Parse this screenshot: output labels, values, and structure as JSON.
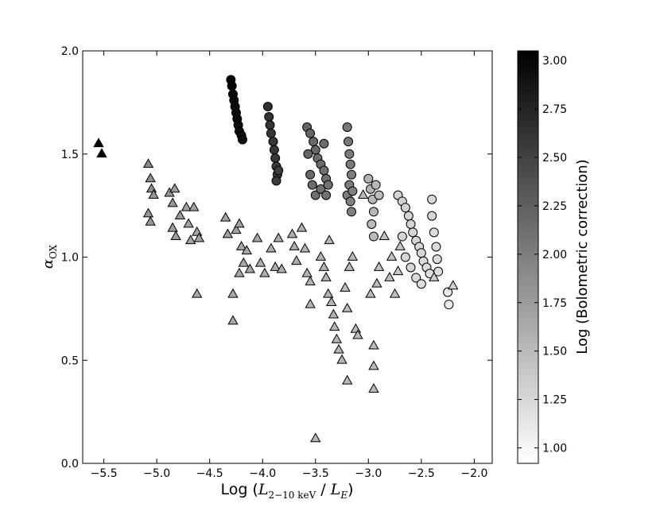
{
  "chart_data": {
    "type": "scatter",
    "xlabel": {
      "prefix": "Log (",
      "var": "L",
      "sub": "2−10 keV",
      "sep": " / ",
      "var2": "L",
      "sub2": "E",
      "suffix": ")"
    },
    "ylabel": {
      "var": "α",
      "sub": "OX"
    },
    "colorbar_label": "Log (Bolometric correction)",
    "xlim": [
      -5.7,
      -1.83
    ],
    "ylim": [
      0,
      2
    ],
    "clim": [
      0.92,
      3.05
    ],
    "colormap": "gray_r",
    "xticks": [
      {
        "value": -5.5,
        "label": "−5.5"
      },
      {
        "value": -5.0,
        "label": "−5.0"
      },
      {
        "value": -4.5,
        "label": "−4.5"
      },
      {
        "value": -4.0,
        "label": "−4.0"
      },
      {
        "value": -3.5,
        "label": "−3.5"
      },
      {
        "value": -3.0,
        "label": "−3.0"
      },
      {
        "value": -2.5,
        "label": "−2.5"
      },
      {
        "value": -2.0,
        "label": "−2.0"
      }
    ],
    "yticks": [
      {
        "value": 0.0,
        "label": "0.0"
      },
      0.5,
      {
        "value": 1.0,
        "label": "1.0"
      },
      1.5,
      {
        "value": 2.0,
        "label": "2.0"
      }
    ],
    "cticks": [
      {
        "value": 1.0,
        "label": "1.00"
      },
      1.25,
      {
        "value": 1.5,
        "label": "1.50"
      },
      1.75,
      {
        "value": 2.0,
        "label": "2.00"
      },
      2.25,
      {
        "value": 2.5,
        "label": "2.50"
      },
      2.75,
      {
        "value": 3.0,
        "label": "3.00"
      }
    ],
    "series": [
      {
        "marker": "circle",
        "x": [
          -4.3,
          -4.29,
          -4.28,
          -4.27,
          -4.26,
          -4.25,
          -4.24,
          -4.23,
          -4.22,
          -4.2,
          -4.19,
          -3.95,
          -3.94,
          -3.93,
          -3.92,
          -3.9,
          -3.89,
          -3.88,
          -3.87,
          -3.86,
          -3.87,
          -3.85,
          -3.58,
          -3.55,
          -3.52,
          -3.5,
          -3.48,
          -3.45,
          -3.42,
          -3.4,
          -3.57,
          -3.55,
          -3.53,
          -3.5,
          -3.45,
          -3.4,
          -3.38,
          -3.42,
          -3.2,
          -3.19,
          -3.18,
          -3.17,
          -3.16,
          -3.18,
          -3.2,
          -3.17,
          -3.16,
          -3.15,
          -3.0,
          -2.98,
          -2.96,
          -2.95,
          -2.97,
          -2.95,
          -2.93,
          -2.9,
          -2.72,
          -2.68,
          -2.65,
          -2.62,
          -2.6,
          -2.58,
          -2.55,
          -2.52,
          -2.5,
          -2.48,
          -2.45,
          -2.42,
          -2.4,
          -2.4,
          -2.38,
          -2.36,
          -2.35,
          -2.34,
          -2.6,
          -2.55,
          -2.5,
          -2.65,
          -2.68,
          -2.25,
          -2.24
        ],
        "y": [
          1.86,
          1.83,
          1.79,
          1.76,
          1.73,
          1.7,
          1.67,
          1.64,
          1.61,
          1.59,
          1.57,
          1.73,
          1.68,
          1.64,
          1.6,
          1.56,
          1.52,
          1.48,
          1.44,
          1.4,
          1.37,
          1.42,
          1.63,
          1.6,
          1.56,
          1.52,
          1.48,
          1.45,
          1.42,
          1.38,
          1.5,
          1.4,
          1.35,
          1.3,
          1.33,
          1.3,
          1.35,
          1.55,
          1.63,
          1.56,
          1.5,
          1.45,
          1.4,
          1.35,
          1.3,
          1.27,
          1.22,
          1.32,
          1.38,
          1.33,
          1.28,
          1.22,
          1.16,
          1.1,
          1.35,
          1.3,
          1.3,
          1.27,
          1.24,
          1.2,
          1.16,
          1.12,
          1.08,
          1.05,
          1.02,
          0.98,
          0.95,
          0.92,
          1.28,
          1.2,
          1.12,
          1.05,
          0.99,
          0.93,
          0.95,
          0.9,
          0.87,
          1.0,
          1.1,
          0.83,
          0.77
        ],
        "c": [
          3.0,
          3.0,
          2.98,
          2.97,
          2.96,
          2.95,
          2.95,
          2.94,
          2.93,
          2.93,
          2.92,
          2.65,
          2.62,
          2.62,
          2.6,
          2.6,
          2.58,
          2.58,
          2.56,
          2.56,
          2.55,
          2.55,
          2.2,
          2.2,
          2.18,
          2.18,
          2.15,
          2.15,
          2.12,
          2.12,
          2.2,
          2.18,
          2.15,
          2.12,
          2.12,
          2.1,
          2.1,
          2.15,
          2.05,
          2.05,
          2.02,
          2.02,
          2.0,
          2.0,
          2.0,
          1.98,
          1.98,
          1.98,
          1.55,
          1.55,
          1.52,
          1.52,
          1.5,
          1.5,
          1.52,
          1.5,
          1.3,
          1.3,
          1.3,
          1.28,
          1.28,
          1.28,
          1.25,
          1.25,
          1.25,
          1.22,
          1.22,
          1.2,
          1.25,
          1.25,
          1.22,
          1.22,
          1.2,
          1.2,
          1.25,
          1.22,
          1.2,
          1.28,
          1.28,
          1.1,
          1.1
        ]
      },
      {
        "marker": "triangle",
        "x": [
          -5.55,
          -5.52,
          -5.08,
          -5.06,
          -5.05,
          -5.03,
          -5.08,
          -5.06,
          -4.88,
          -4.85,
          -4.83,
          -4.85,
          -4.82,
          -4.78,
          -4.72,
          -4.7,
          -4.68,
          -4.65,
          -4.62,
          -4.6,
          -4.62,
          -4.35,
          -4.33,
          -4.28,
          -4.28,
          -4.25,
          -4.22,
          -4.2,
          -4.22,
          -4.18,
          -4.15,
          -4.12,
          -4.05,
          -4.02,
          -3.98,
          -3.92,
          -3.88,
          -3.85,
          -3.82,
          -3.72,
          -3.7,
          -3.68,
          -3.63,
          -3.6,
          -3.58,
          -3.55,
          -3.55,
          -3.5,
          -3.45,
          -3.42,
          -3.4,
          -3.38,
          -3.37,
          -3.35,
          -3.33,
          -3.32,
          -3.3,
          -3.28,
          -3.25,
          -3.22,
          -3.2,
          -3.2,
          -3.18,
          -3.15,
          -3.12,
          -3.1,
          -3.05,
          -2.98,
          -2.95,
          -2.95,
          -2.95,
          -2.92,
          -2.9,
          -2.85,
          -2.8,
          -2.78,
          -2.75,
          -2.72,
          -2.7,
          -2.2,
          -2.38
        ],
        "y": [
          1.55,
          1.5,
          1.45,
          1.38,
          1.33,
          1.3,
          1.21,
          1.17,
          1.31,
          1.26,
          1.33,
          1.14,
          1.1,
          1.2,
          1.24,
          1.16,
          1.08,
          1.24,
          1.12,
          1.09,
          0.82,
          1.19,
          1.11,
          0.82,
          0.69,
          1.13,
          1.16,
          1.05,
          0.92,
          0.97,
          1.03,
          0.94,
          1.09,
          0.97,
          0.92,
          1.04,
          0.95,
          1.09,
          0.94,
          1.11,
          1.05,
          0.98,
          1.14,
          1.04,
          0.92,
          0.88,
          0.77,
          0.12,
          1.0,
          0.95,
          0.9,
          0.82,
          1.08,
          0.78,
          0.72,
          0.66,
          0.6,
          0.55,
          0.5,
          0.85,
          0.75,
          0.4,
          0.95,
          1.0,
          0.65,
          0.62,
          1.3,
          0.82,
          0.57,
          0.47,
          0.36,
          0.87,
          0.95,
          1.1,
          0.9,
          1.0,
          0.82,
          0.93,
          1.05,
          0.86,
          0.9
        ],
        "c": [
          3.0,
          3.0,
          1.9,
          1.85,
          1.85,
          1.8,
          1.8,
          1.8,
          1.8,
          1.8,
          1.75,
          1.75,
          1.75,
          1.75,
          1.7,
          1.7,
          1.7,
          1.7,
          1.7,
          1.7,
          1.65,
          1.7,
          1.7,
          1.65,
          1.65,
          1.7,
          1.7,
          1.65,
          1.65,
          1.65,
          1.65,
          1.65,
          1.65,
          1.6,
          1.6,
          1.6,
          1.6,
          1.6,
          1.6,
          1.6,
          1.6,
          1.6,
          1.6,
          1.55,
          1.55,
          1.55,
          1.55,
          1.55,
          1.55,
          1.55,
          1.55,
          1.55,
          1.55,
          1.55,
          1.55,
          1.55,
          1.55,
          1.55,
          1.55,
          1.5,
          1.5,
          1.5,
          1.5,
          1.5,
          1.5,
          1.5,
          1.5,
          1.5,
          1.5,
          1.5,
          1.5,
          1.5,
          1.45,
          1.45,
          1.45,
          1.45,
          1.45,
          1.4,
          1.4,
          1.3,
          1.35
        ]
      }
    ]
  }
}
